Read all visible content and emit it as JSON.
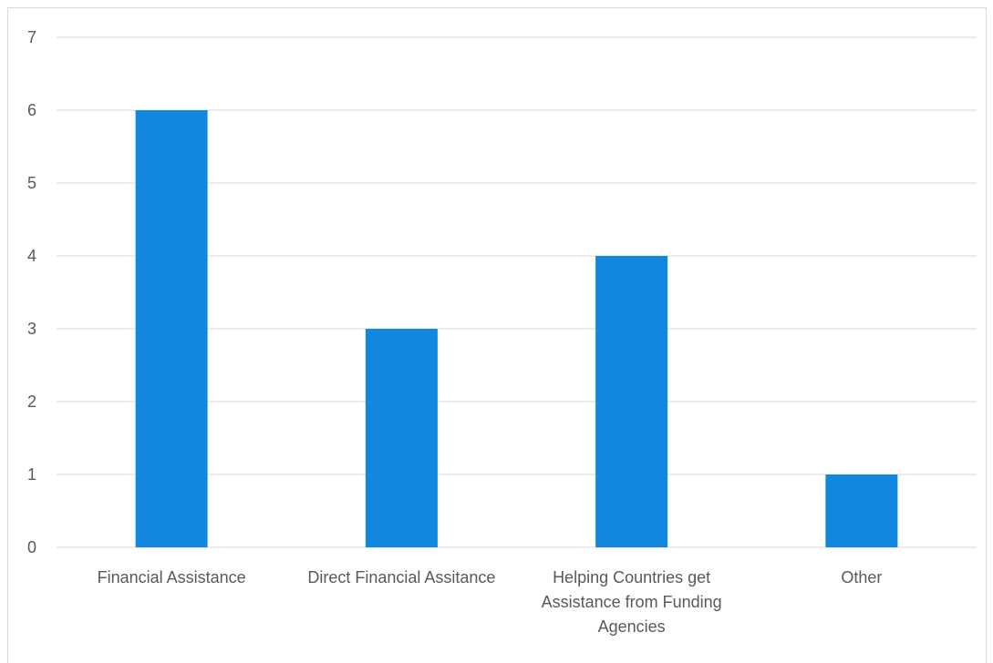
{
  "chart_data": {
    "type": "bar",
    "title": "",
    "xlabel": "",
    "ylabel": "",
    "categories": [
      "Financial Assistance",
      "Direct Financial Assitance",
      "Helping Countries get Assistance from Funding Agencies",
      "Other"
    ],
    "category_label_lines": [
      [
        "Financial Assistance"
      ],
      [
        "Direct Financial Assitance"
      ],
      [
        "Helping Countries get",
        "Assistance from Funding",
        "Agencies"
      ],
      [
        "Other"
      ]
    ],
    "values": [
      6,
      3,
      4,
      1
    ],
    "ylim": [
      0,
      7
    ],
    "yticks": [
      "0",
      "1",
      "2",
      "3",
      "4",
      "5",
      "6",
      "7"
    ],
    "grid": true,
    "legend": "none",
    "colors": {
      "bar": "#1287DF",
      "grid": "#d9d9d9",
      "axis": "#d9d9d9",
      "text": "#595959"
    }
  }
}
